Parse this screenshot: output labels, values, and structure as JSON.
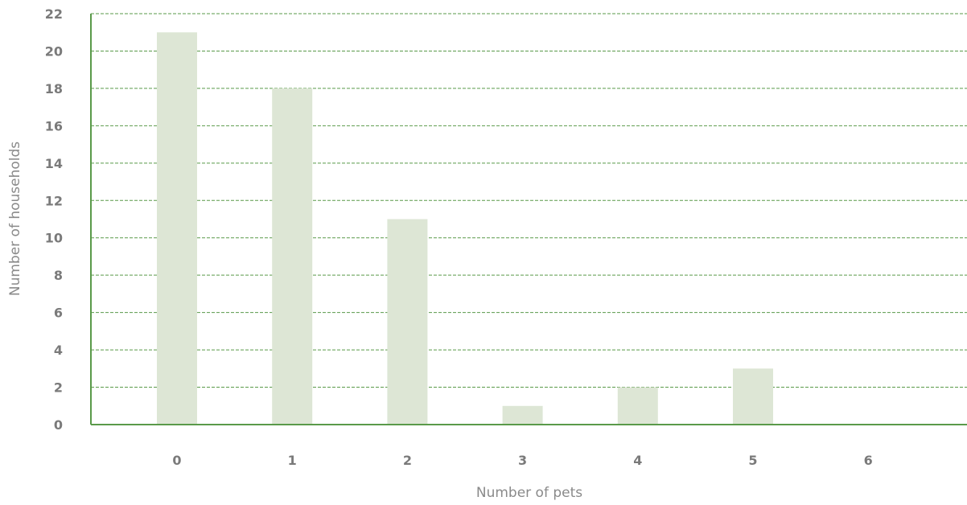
{
  "chart_data": {
    "type": "bar",
    "title": "",
    "xlabel": "Number of pets",
    "ylabel": "Number of households",
    "categories": [
      "0",
      "1",
      "2",
      "3",
      "4",
      "5",
      "6"
    ],
    "values": [
      21,
      18,
      11,
      1,
      2,
      3,
      0
    ],
    "ylim": [
      0,
      22
    ],
    "yticks": [
      0,
      2,
      4,
      6,
      8,
      10,
      12,
      14,
      16,
      18,
      20,
      22
    ],
    "grid": true,
    "grid_style": "dashed",
    "bar_color": "#dde6d5",
    "axis_color": "#5a9a4a",
    "grid_color": "#5a9a4a",
    "tick_label_color": "#7a7a7a",
    "axis_title_color": "#8a8a8a"
  }
}
